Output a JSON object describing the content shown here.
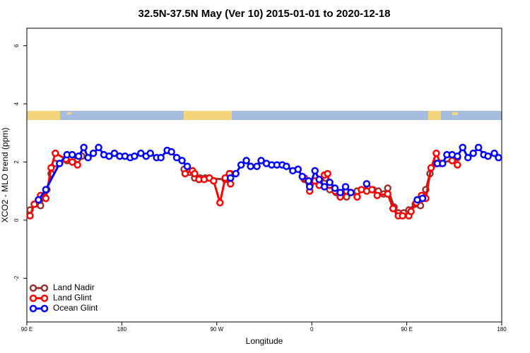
{
  "chart_data": {
    "type": "line",
    "title": "32.5N-37.5N May (Ver 10)   2015-01-01 to 2020-12-18",
    "xlabel": "Longitude",
    "ylabel": "XCO2 - MLO trend (ppm)",
    "xlim": [
      90,
      540
    ],
    "ylim": [
      -3.5,
      6.6
    ],
    "xticks": [
      {
        "value": 90,
        "label": "90 E"
      },
      180,
      {
        "value": 270,
        "label": "90 W"
      },
      {
        "value": 360,
        "label": "0"
      },
      {
        "value": 450,
        "label": "90 E"
      },
      {
        "value": 540,
        "label": "180"
      }
    ],
    "yticks": [
      -2,
      0,
      2,
      4,
      6
    ],
    "legend": "bottomleft",
    "series": [
      {
        "name": "Land Nadir",
        "color": "#993333",
        "x": [
          93,
          98,
          103,
          109,
          113,
          117,
          128,
          138,
          142,
          null,
          239,
          244,
          249,
          254,
          259,
          278,
          283,
          null,
          353,
          358,
          367,
          373,
          377,
          383,
          393,
          403,
          413,
          418,
          423,
          428,
          432,
          438,
          442,
          447,
          452,
          458,
          463,
          468,
          472,
          478,
          493,
          498
        ],
        "values": [
          0.35,
          0.55,
          0.5,
          1.05,
          1.6,
          1.95,
          2.05,
          2.1,
          2.2,
          null,
          1.75,
          1.65,
          1.45,
          1.45,
          1.45,
          1.4,
          1.6,
          null,
          1.4,
          1.3,
          1.25,
          1.45,
          1.05,
          0.95,
          0.8,
          1.0,
          1.1,
          1.05,
          1.0,
          0.9,
          1.1,
          0.45,
          0.25,
          0.25,
          0.35,
          0.55,
          0.5,
          1.05,
          1.6,
          1.95,
          2.05,
          2.15
        ]
      },
      {
        "name": "Land Glint",
        "color": "#ff0000",
        "x": [
          93,
          97,
          103,
          108,
          113,
          117,
          127,
          133,
          138,
          null,
          240,
          247,
          249,
          253,
          258,
          263,
          267,
          273,
          278,
          282,
          283,
          null,
          353,
          358,
          363,
          367,
          372,
          375,
          377,
          382,
          387,
          393,
          397,
          403,
          407,
          412,
          417,
          422,
          432,
          437,
          442,
          446,
          452,
          454,
          459,
          464,
          468,
          473,
          478,
          482,
          null,
          493,
          498
        ],
        "values": [
          0.15,
          0.55,
          0.85,
          0.75,
          1.8,
          2.3,
          2.1,
          2.0,
          1.9,
          null,
          1.6,
          1.7,
          1.6,
          1.4,
          1.4,
          1.45,
          1.35,
          0.6,
          1.45,
          1.6,
          1.25,
          null,
          1.45,
          1.0,
          1.35,
          1.2,
          1.55,
          1.6,
          1.2,
          1.0,
          0.8,
          1.0,
          0.95,
          0.8,
          1.05,
          1.0,
          1.05,
          0.85,
          0.9,
          0.4,
          0.15,
          0.15,
          0.15,
          0.3,
          0.6,
          0.85,
          0.75,
          1.8,
          2.3,
          1.95,
          null,
          2.05,
          1.9
        ]
      },
      {
        "name": "Ocean Glint",
        "color": "#0000ff",
        "x": [
          101,
          108,
          121,
          128,
          133,
          139,
          144,
          148,
          153,
          158,
          163,
          168,
          173,
          178,
          183,
          188,
          192,
          198,
          203,
          207,
          213,
          217,
          223,
          227,
          232,
          237,
          242,
          null,
          283,
          288,
          293,
          298,
          302,
          308,
          312,
          317,
          322,
          327,
          332,
          336,
          342,
          347,
          351,
          357,
          358,
          363,
          367,
          372,
          377,
          382,
          387,
          392,
          397,
          null,
          412,
          null,
          460,
          465,
          null,
          479,
          484,
          488,
          493,
          498,
          503,
          508,
          513,
          518,
          523,
          527,
          533,
          537
        ],
        "values": [
          0.7,
          1.05,
          1.95,
          2.25,
          2.25,
          2.2,
          2.5,
          2.15,
          2.3,
          2.5,
          2.25,
          2.2,
          2.3,
          2.2,
          2.2,
          2.15,
          2.2,
          2.3,
          2.2,
          2.3,
          2.15,
          2.15,
          2.4,
          2.35,
          2.15,
          2.05,
          1.85,
          null,
          1.45,
          1.6,
          1.9,
          2.05,
          1.85,
          1.85,
          2.05,
          1.95,
          1.9,
          1.9,
          1.9,
          1.85,
          1.7,
          1.75,
          1.5,
          1.35,
          1.15,
          1.7,
          1.4,
          1.15,
          1.3,
          1.1,
          0.95,
          1.15,
          0.95,
          null,
          1.25,
          null,
          0.7,
          0.75,
          null,
          1.95,
          1.95,
          2.25,
          2.25,
          2.2,
          2.5,
          2.15,
          2.3,
          2.5,
          2.25,
          2.2,
          2.3,
          2.15
        ]
      }
    ]
  }
}
